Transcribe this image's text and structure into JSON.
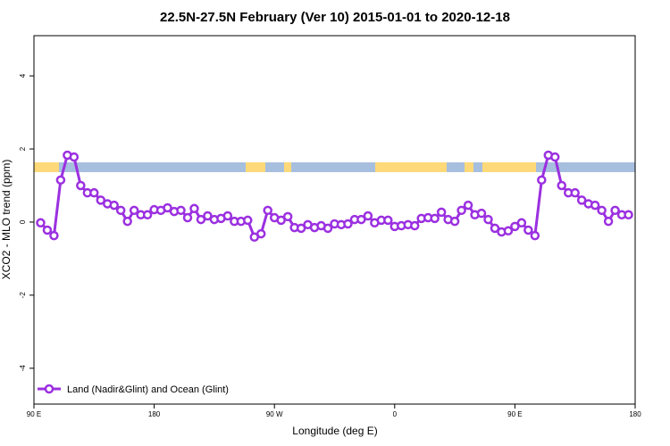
{
  "chart_data": {
    "type": "line",
    "title": "22.5N-27.5N February (Ver 10)   2015-01-01 to 2020-12-18",
    "xlabel": "Longitude (deg E)",
    "ylabel": "XCO2 - MLO trend (ppm)",
    "x": [
      95,
      100,
      105,
      110,
      115,
      120,
      125,
      130,
      135,
      140,
      145,
      150,
      155,
      160,
      165,
      170,
      175,
      180,
      185,
      190,
      195,
      200,
      205,
      210,
      215,
      220,
      225,
      230,
      235,
      240,
      245,
      250,
      255,
      260,
      265,
      270,
      275,
      280,
      285,
      290,
      295,
      300,
      305,
      310,
      315,
      320,
      325,
      330,
      335,
      340,
      345,
      350,
      355,
      360,
      365,
      370,
      375,
      380,
      385,
      390,
      395,
      400,
      405,
      410,
      415,
      420,
      425,
      430,
      435,
      440,
      445,
      450,
      455,
      460,
      465,
      470,
      475,
      480,
      485,
      490,
      495,
      500,
      505,
      510,
      515,
      520,
      525,
      530,
      535
    ],
    "series": [
      {
        "name": "Land (Nadir&Glint) and Ocean (Glint)",
        "color": "#9b30e0",
        "values": [
          -0.02,
          -0.22,
          -0.37,
          1.15,
          1.83,
          1.78,
          1.0,
          0.8,
          0.8,
          0.6,
          0.5,
          0.46,
          0.32,
          0.02,
          0.32,
          0.2,
          0.2,
          0.34,
          0.32,
          0.39,
          0.29,
          0.32,
          0.12,
          0.37,
          0.07,
          0.17,
          0.07,
          0.1,
          0.17,
          0.02,
          0.02,
          0.05,
          -0.41,
          -0.32,
          0.32,
          0.12,
          0.05,
          0.15,
          -0.15,
          -0.17,
          -0.07,
          -0.15,
          -0.1,
          -0.17,
          -0.05,
          -0.07,
          -0.05,
          0.07,
          0.07,
          0.17,
          -0.02,
          0.05,
          0.05,
          -0.12,
          -0.1,
          -0.07,
          -0.1,
          0.1,
          0.12,
          0.1,
          0.27,
          0.07,
          0.02,
          0.32,
          0.46,
          0.2,
          0.24,
          0.07,
          -0.17,
          -0.27,
          -0.24,
          -0.12,
          -0.02,
          -0.22,
          -0.37,
          1.15,
          1.83,
          1.78,
          1.0,
          0.8,
          0.8,
          0.6,
          0.5,
          0.46,
          0.32,
          0.02,
          0.32,
          0.2,
          0.2
        ]
      }
    ],
    "xlim": [
      90,
      540
    ],
    "xticks": [
      {
        "value": 90,
        "label": "90 E"
      },
      180,
      {
        "value": 270,
        "label": "90 W"
      },
      {
        "value": 360,
        "label": "0"
      },
      {
        "value": 450,
        "label": "90 E"
      },
      {
        "value": 540,
        "label": "180"
      }
    ],
    "ylim": [
      -4.98,
      5.1
    ],
    "yticks": [
      -4,
      -2,
      0,
      2,
      4
    ],
    "legend": "bottom-left"
  }
}
